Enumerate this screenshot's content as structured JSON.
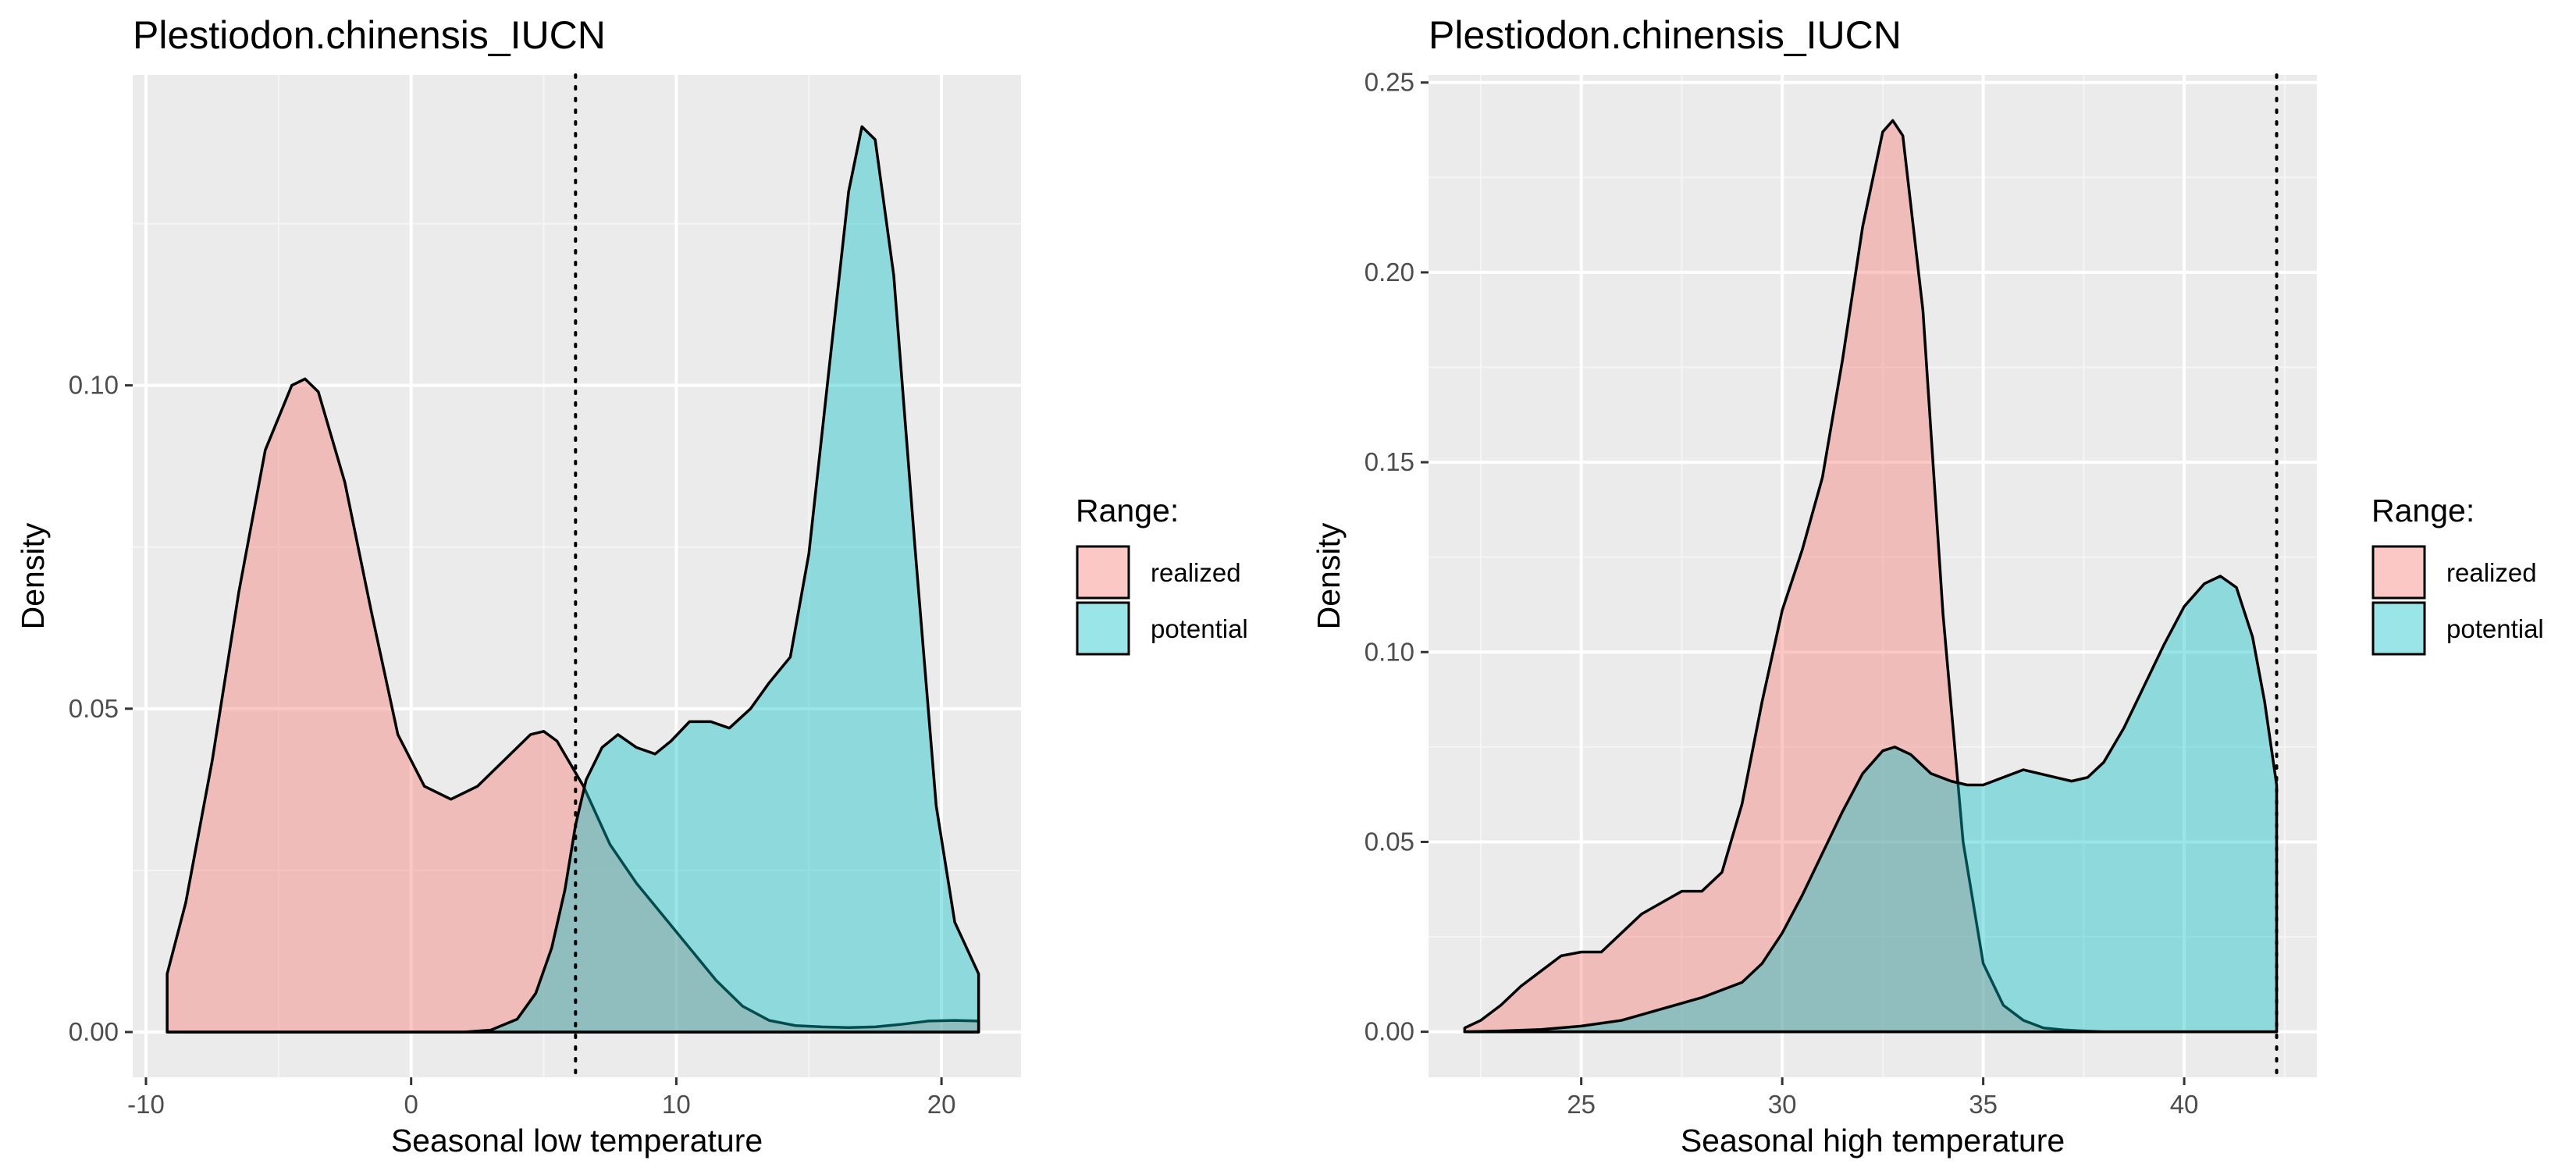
{
  "chart_data": [
    {
      "type": "area",
      "title": "Plestiodon.chinensis_IUCN",
      "xlabel": "Seasonal low temperature",
      "ylabel": "Density",
      "xlim": [
        -10.5,
        23
      ],
      "ylim": [
        -0.007,
        0.148
      ],
      "x_ticks": [
        -10,
        0,
        10,
        20
      ],
      "x_tick_labels": [
        "-10",
        "0",
        "10",
        "20"
      ],
      "y_ticks": [
        0.0,
        0.05,
        0.1
      ],
      "y_tick_labels": [
        "0.00",
        "0.05",
        "0.10"
      ],
      "x_minor": [
        -5,
        5,
        15
      ],
      "y_minor": [
        0.025,
        0.075,
        0.125
      ],
      "vline": 6.2,
      "grid": true,
      "legend": {
        "title": "Range:",
        "position": "right",
        "items": [
          "realized",
          "potential"
        ]
      },
      "series": [
        {
          "name": "realized",
          "color": "#F8766D",
          "x": [
            -9.2,
            -8.5,
            -7.5,
            -6.5,
            -5.5,
            -4.5,
            -4.0,
            -3.5,
            -2.5,
            -1.5,
            -0.5,
            0.5,
            1.5,
            2.5,
            3.5,
            4.5,
            5.0,
            5.5,
            6.5,
            7.5,
            8.5,
            9.5,
            10.5,
            11.5,
            12.5,
            13.5,
            14.5,
            15.5,
            16.5,
            17.5,
            18.5,
            19.5,
            20.5,
            21.4
          ],
          "y": [
            0.009,
            0.02,
            0.042,
            0.068,
            0.09,
            0.1,
            0.101,
            0.099,
            0.085,
            0.065,
            0.046,
            0.038,
            0.036,
            0.038,
            0.042,
            0.046,
            0.0465,
            0.045,
            0.038,
            0.029,
            0.023,
            0.018,
            0.013,
            0.008,
            0.004,
            0.0018,
            0.001,
            0.0008,
            0.0007,
            0.0008,
            0.0012,
            0.0017,
            0.0018,
            0.0017
          ]
        },
        {
          "name": "potential",
          "color": "#00BFC4",
          "x": [
            -9.2,
            2.0,
            3.0,
            4.0,
            4.7,
            5.3,
            5.8,
            6.2,
            6.6,
            7.2,
            7.8,
            8.5,
            9.2,
            9.8,
            10.5,
            11.3,
            12.0,
            12.8,
            13.5,
            14.3,
            15.0,
            15.8,
            16.5,
            17.0,
            17.5,
            18.2,
            19.0,
            19.8,
            20.5,
            21.4
          ],
          "y": [
            0.0,
            0.0,
            0.0003,
            0.002,
            0.006,
            0.013,
            0.022,
            0.032,
            0.039,
            0.044,
            0.046,
            0.044,
            0.043,
            0.045,
            0.048,
            0.048,
            0.047,
            0.05,
            0.054,
            0.058,
            0.074,
            0.104,
            0.13,
            0.14,
            0.138,
            0.117,
            0.075,
            0.035,
            0.017,
            0.009
          ]
        }
      ]
    },
    {
      "type": "area",
      "title": "Plestiodon.chinensis_IUCN",
      "xlabel": "Seasonal high temperature",
      "ylabel": "Density",
      "xlim": [
        21.2,
        43.3
      ],
      "ylim": [
        -0.012,
        0.252
      ],
      "x_ticks": [
        25,
        30,
        35,
        40
      ],
      "x_tick_labels": [
        "25",
        "30",
        "35",
        "40"
      ],
      "y_ticks": [
        0.0,
        0.05,
        0.1,
        0.15,
        0.2,
        0.25
      ],
      "y_tick_labels": [
        "0.00",
        "0.05",
        "0.10",
        "0.15",
        "0.20",
        "0.25"
      ],
      "x_minor": [
        22.5,
        27.5,
        32.5,
        37.5,
        42.5
      ],
      "y_minor": [
        0.025,
        0.075,
        0.125,
        0.175,
        0.225
      ],
      "vline": 42.3,
      "grid": true,
      "legend": {
        "title": "Range:",
        "position": "right",
        "items": [
          "realized",
          "potential"
        ]
      },
      "series": [
        {
          "name": "realized",
          "color": "#F8766D",
          "x": [
            22.1,
            22.5,
            23.0,
            23.5,
            24.0,
            24.5,
            25.0,
            25.5,
            26.0,
            26.5,
            27.0,
            27.5,
            28.0,
            28.5,
            29.0,
            29.5,
            30.0,
            30.5,
            31.0,
            31.5,
            32.0,
            32.5,
            32.75,
            33.0,
            33.5,
            34.0,
            34.5,
            35.0,
            35.5,
            36.0,
            36.5,
            37.0,
            37.5,
            38.0,
            40.0,
            42.3
          ],
          "y": [
            0.001,
            0.003,
            0.007,
            0.012,
            0.016,
            0.02,
            0.021,
            0.021,
            0.026,
            0.031,
            0.034,
            0.037,
            0.037,
            0.042,
            0.06,
            0.087,
            0.111,
            0.127,
            0.146,
            0.177,
            0.212,
            0.237,
            0.24,
            0.236,
            0.19,
            0.11,
            0.05,
            0.018,
            0.007,
            0.003,
            0.001,
            0.0005,
            0.0002,
            0.0,
            0.0,
            0.0
          ]
        },
        {
          "name": "potential",
          "color": "#00BFC4",
          "x": [
            22.1,
            23.0,
            24.0,
            25.0,
            26.0,
            27.0,
            28.0,
            29.0,
            29.5,
            30.0,
            30.5,
            31.0,
            31.5,
            32.0,
            32.5,
            32.8,
            33.2,
            33.7,
            34.2,
            34.6,
            35.0,
            35.5,
            36.0,
            36.4,
            36.8,
            37.2,
            37.6,
            38.0,
            38.5,
            39.0,
            39.5,
            40.0,
            40.5,
            40.9,
            41.3,
            41.7,
            42.0,
            42.3
          ],
          "y": [
            0.0,
            0.0002,
            0.0006,
            0.0015,
            0.003,
            0.006,
            0.009,
            0.013,
            0.018,
            0.026,
            0.036,
            0.047,
            0.058,
            0.068,
            0.074,
            0.075,
            0.073,
            0.068,
            0.066,
            0.065,
            0.065,
            0.067,
            0.069,
            0.068,
            0.067,
            0.066,
            0.067,
            0.071,
            0.08,
            0.091,
            0.102,
            0.112,
            0.118,
            0.12,
            0.117,
            0.104,
            0.087,
            0.065
          ]
        }
      ]
    }
  ]
}
